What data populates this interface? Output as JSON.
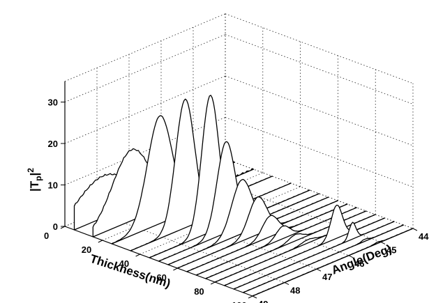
{
  "chart_data": {
    "type": "3d-waterfall",
    "xlabel": "Thickness(nm)",
    "ylabel": "Angle(Deg)",
    "zlabel_base": "|T",
    "zlabel_sub": "p",
    "zlabel_end": "|",
    "zlabel_sup": "2",
    "xlim": [
      0,
      100
    ],
    "ylim": [
      44,
      49
    ],
    "zlim": [
      0,
      35
    ],
    "xticks": [
      "0",
      "20",
      "40",
      "60",
      "80",
      "100"
    ],
    "yticks": [
      "44",
      "45",
      "46",
      "47",
      "48",
      "49"
    ],
    "zticks": [
      "0",
      "10",
      "20",
      "30"
    ],
    "grid": true,
    "series": [
      {
        "thickness": 5,
        "peak_angle": 48.1,
        "peak_value": 10,
        "width": 1.2
      },
      {
        "thickness": 15,
        "peak_angle": 47.8,
        "peak_value": 17,
        "width": 0.85
      },
      {
        "thickness": 25,
        "peak_angle": 47.5,
        "peak_value": 26,
        "width": 0.55
      },
      {
        "thickness": 35,
        "peak_angle": 47.3,
        "peak_value": 31,
        "width": 0.42
      },
      {
        "thickness": 45,
        "peak_angle": 47.1,
        "peak_value": 33,
        "width": 0.38
      },
      {
        "thickness": 50,
        "peak_angle": 46.9,
        "peak_value": 22,
        "width": 0.4
      },
      {
        "thickness": 55,
        "peak_angle": 46.7,
        "peak_value": 13,
        "width": 0.45
      },
      {
        "thickness": 60,
        "peak_angle": 46.5,
        "peak_value": 9,
        "width": 0.4
      },
      {
        "thickness": 65,
        "peak_angle": 46.4,
        "peak_value": 5,
        "width": 0.35
      },
      {
        "thickness": 70,
        "peak_angle": 46.3,
        "peak_value": 3,
        "width": 0.3
      },
      {
        "thickness": 75,
        "peak_angle": 46.2,
        "peak_value": 1.5,
        "width": 0.3
      },
      {
        "thickness": 80,
        "peak_angle": 46.1,
        "peak_value": 0.8,
        "width": 0.3
      },
      {
        "thickness": 85,
        "peak_angle": 45.5,
        "peak_value": 8,
        "width": 0.25
      },
      {
        "thickness": 90,
        "peak_angle": 45.3,
        "peak_value": 4,
        "width": 0.15
      },
      {
        "thickness": 95,
        "peak_angle": 45.2,
        "peak_value": 0.5,
        "width": 0.15
      },
      {
        "thickness": 100,
        "peak_angle": 45.1,
        "peak_value": 0.3,
        "width": 0.15
      }
    ]
  }
}
